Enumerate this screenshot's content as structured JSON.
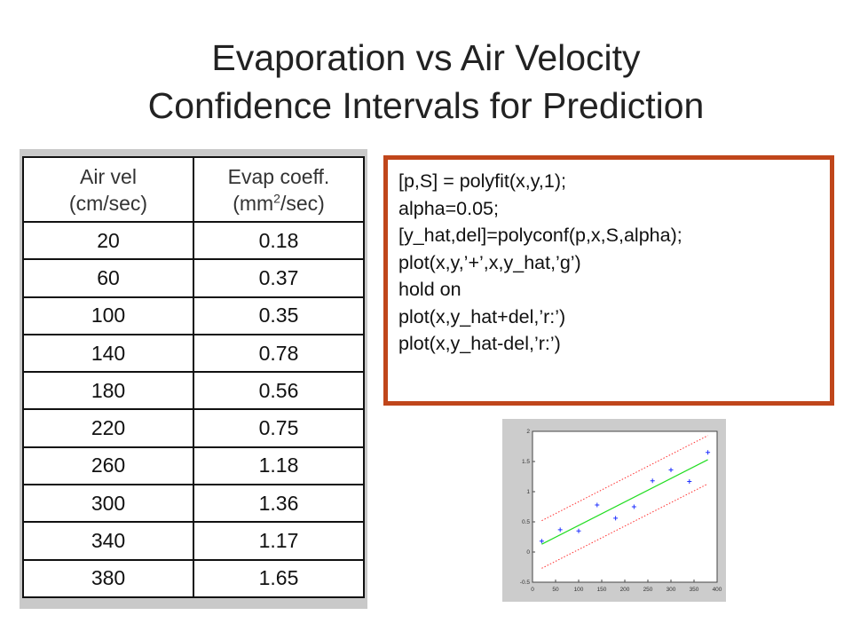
{
  "title": {
    "line1": "Evaporation vs Air Velocity",
    "line2": "Confidence Intervals for Prediction"
  },
  "table": {
    "col1_header_line1": "Air vel",
    "col1_header_line2": "(cm/sec)",
    "col2_header_line1": "Evap coeff.",
    "col2_header_line2_pre": "(mm",
    "col2_header_sup": "2",
    "col2_header_line2_post": "/sec)",
    "rows": [
      [
        "20",
        "0.18"
      ],
      [
        "60",
        "0.37"
      ],
      [
        "100",
        "0.35"
      ],
      [
        "140",
        "0.78"
      ],
      [
        "180",
        "0.56"
      ],
      [
        "220",
        "0.75"
      ],
      [
        "260",
        "1.18"
      ],
      [
        "300",
        "1.36"
      ],
      [
        "340",
        "1.17"
      ],
      [
        "380",
        "1.65"
      ]
    ]
  },
  "code": [
    "[p,S] = polyfit(x,y,1);",
    "alpha=0.05;",
    "[y_hat,del]=polyconf(p,x,S,alpha);",
    "plot(x,y,’+’,x,y_hat,’g’)",
    "hold on",
    "plot(x,y_hat+del,’r:’)",
    "plot(x,y_hat-del,’r:’)"
  ],
  "colors": {
    "code_border": "#c0461b",
    "fit_line": "#22dd22",
    "ci_line": "#ff3030",
    "data_marker": "#2233ff"
  },
  "chart_data": {
    "type": "scatter",
    "x": [
      20,
      60,
      100,
      140,
      180,
      220,
      260,
      300,
      340,
      380
    ],
    "y": [
      0.18,
      0.37,
      0.35,
      0.78,
      0.56,
      0.75,
      1.18,
      1.36,
      1.17,
      1.65
    ],
    "fit": {
      "x0": 20,
      "y0": 0.13,
      "x1": 380,
      "y1": 1.53
    },
    "ci_upper": {
      "x0": 20,
      "y0": 0.52,
      "x1": 380,
      "y1": 1.93
    },
    "ci_lower": {
      "x0": 20,
      "y0": -0.27,
      "x1": 380,
      "y1": 1.13
    },
    "xlim": [
      0,
      400
    ],
    "ylim": [
      -0.5,
      2
    ],
    "xticks": [
      "0",
      "50",
      "100",
      "150",
      "200",
      "250",
      "300",
      "350",
      "400"
    ],
    "yticks": [
      "-0.5",
      "0",
      "0.5",
      "1",
      "1.5",
      "2"
    ],
    "marker": "+",
    "grid": false
  }
}
